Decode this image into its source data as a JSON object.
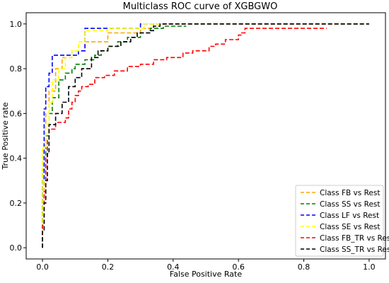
{
  "chart_data": {
    "type": "line",
    "title": "Multiclass ROC curve of XGBGWO",
    "xlabel": "False Positive Rate",
    "ylabel": "True Positive rate",
    "xlim": [
      -0.05,
      1.05
    ],
    "ylim": [
      -0.05,
      1.05
    ],
    "xticks": [
      0.0,
      0.2,
      0.4,
      0.6,
      0.8,
      1.0
    ],
    "yticks": [
      0.0,
      0.2,
      0.4,
      0.6,
      0.8,
      1.0
    ],
    "xtick_labels": [
      "0.0",
      "0.2",
      "0.4",
      "0.6",
      "0.8",
      "1.0"
    ],
    "ytick_labels": [
      "0.0",
      "0.2",
      "0.4",
      "0.6",
      "0.8",
      "1.0"
    ],
    "grid": false,
    "legend_position": "bottom-right",
    "line_style": "dashed",
    "series": [
      {
        "name": "Class FB vs Rest",
        "color": "#ffa500",
        "x": [
          0.0,
          0.0,
          0.005,
          0.005,
          0.01,
          0.01,
          0.02,
          0.02,
          0.04,
          0.04,
          0.06,
          0.06,
          0.09,
          0.09,
          0.13,
          0.13,
          0.2,
          0.2,
          0.3,
          0.3,
          0.34,
          0.34,
          1.0
        ],
        "y": [
          0.0,
          0.2,
          0.2,
          0.45,
          0.45,
          0.6,
          0.6,
          0.7,
          0.7,
          0.8,
          0.8,
          0.85,
          0.85,
          0.88,
          0.88,
          0.92,
          0.92,
          0.96,
          0.96,
          0.98,
          0.98,
          1.0,
          1.0
        ]
      },
      {
        "name": "Class SS vs Rest",
        "color": "#008000",
        "x": [
          0.0,
          0.0,
          0.01,
          0.01,
          0.02,
          0.02,
          0.03,
          0.03,
          0.05,
          0.05,
          0.07,
          0.07,
          0.09,
          0.09,
          0.1,
          0.1,
          0.13,
          0.13,
          0.16,
          0.16,
          0.18,
          0.18,
          0.2,
          0.2,
          0.23,
          0.23,
          0.26,
          0.26,
          0.3,
          0.3,
          0.33,
          0.33,
          0.37,
          0.37,
          0.44
        ],
        "y": [
          0.0,
          0.35,
          0.35,
          0.5,
          0.5,
          0.6,
          0.6,
          0.67,
          0.67,
          0.75,
          0.75,
          0.78,
          0.78,
          0.8,
          0.8,
          0.82,
          0.82,
          0.84,
          0.84,
          0.86,
          0.86,
          0.88,
          0.88,
          0.9,
          0.9,
          0.92,
          0.92,
          0.94,
          0.94,
          0.96,
          0.96,
          0.98,
          0.98,
          0.99,
          0.99
        ]
      },
      {
        "name": "Class LF vs Rest",
        "color": "#0000ff",
        "x": [
          0.0,
          0.0,
          0.005,
          0.005,
          0.01,
          0.01,
          0.02,
          0.02,
          0.03,
          0.03,
          0.11,
          0.11,
          0.13,
          0.13,
          0.3,
          0.3,
          1.0
        ],
        "y": [
          0.0,
          0.3,
          0.3,
          0.62,
          0.62,
          0.72,
          0.72,
          0.78,
          0.78,
          0.86,
          0.86,
          0.88,
          0.88,
          0.98,
          0.98,
          1.0,
          1.0
        ]
      },
      {
        "name": "Class SE vs Rest",
        "color": "#ffff00",
        "x": [
          0.0,
          0.0,
          0.01,
          0.01,
          0.02,
          0.02,
          0.03,
          0.03,
          0.05,
          0.05,
          0.07,
          0.07,
          0.09,
          0.09,
          0.11,
          0.11,
          0.13,
          0.13,
          0.2,
          0.2,
          0.31,
          0.31,
          1.0
        ],
        "y": [
          0.0,
          0.45,
          0.45,
          0.55,
          0.55,
          0.65,
          0.65,
          0.75,
          0.75,
          0.8,
          0.8,
          0.85,
          0.85,
          0.88,
          0.88,
          0.92,
          0.92,
          0.97,
          0.97,
          0.98,
          0.98,
          1.0,
          1.0
        ]
      },
      {
        "name": "Class FB_TR vs Rest",
        "color": "#ff0000",
        "x": [
          0.0,
          0.0,
          0.005,
          0.005,
          0.01,
          0.01,
          0.015,
          0.015,
          0.02,
          0.02,
          0.04,
          0.04,
          0.07,
          0.07,
          0.08,
          0.08,
          0.09,
          0.09,
          0.1,
          0.1,
          0.11,
          0.11,
          0.12,
          0.12,
          0.14,
          0.14,
          0.16,
          0.16,
          0.19,
          0.19,
          0.22,
          0.22,
          0.26,
          0.26,
          0.3,
          0.3,
          0.34,
          0.34,
          0.38,
          0.38,
          0.43,
          0.43,
          0.46,
          0.46,
          0.51,
          0.51,
          0.53,
          0.53,
          0.56,
          0.56,
          0.6,
          0.6,
          0.61,
          0.61,
          0.62,
          0.62,
          0.87
        ],
        "y": [
          0.0,
          0.1,
          0.1,
          0.25,
          0.25,
          0.4,
          0.4,
          0.48,
          0.48,
          0.53,
          0.53,
          0.56,
          0.56,
          0.58,
          0.58,
          0.62,
          0.62,
          0.65,
          0.65,
          0.68,
          0.68,
          0.7,
          0.7,
          0.72,
          0.72,
          0.73,
          0.73,
          0.76,
          0.76,
          0.77,
          0.77,
          0.79,
          0.79,
          0.81,
          0.81,
          0.82,
          0.82,
          0.84,
          0.84,
          0.85,
          0.85,
          0.87,
          0.87,
          0.88,
          0.88,
          0.9,
          0.9,
          0.91,
          0.91,
          0.93,
          0.93,
          0.95,
          0.95,
          0.96,
          0.96,
          0.98,
          0.98
        ]
      },
      {
        "name": "Class SS_TR vs Rest",
        "color": "#000000",
        "x": [
          0.0,
          0.0,
          0.005,
          0.005,
          0.01,
          0.01,
          0.015,
          0.015,
          0.02,
          0.02,
          0.04,
          0.04,
          0.06,
          0.06,
          0.08,
          0.08,
          0.1,
          0.1,
          0.12,
          0.12,
          0.15,
          0.15,
          0.17,
          0.17,
          0.2,
          0.2,
          0.24,
          0.24,
          0.27,
          0.27,
          0.29,
          0.29,
          0.33,
          0.33,
          0.34,
          0.34,
          0.36,
          0.36,
          1.0
        ],
        "y": [
          0.0,
          0.08,
          0.08,
          0.2,
          0.2,
          0.3,
          0.3,
          0.42,
          0.42,
          0.55,
          0.55,
          0.6,
          0.6,
          0.65,
          0.65,
          0.72,
          0.72,
          0.76,
          0.76,
          0.8,
          0.8,
          0.85,
          0.85,
          0.88,
          0.88,
          0.9,
          0.9,
          0.92,
          0.92,
          0.94,
          0.94,
          0.96,
          0.96,
          0.97,
          0.97,
          0.99,
          0.99,
          1.0,
          1.0
        ]
      }
    ]
  }
}
